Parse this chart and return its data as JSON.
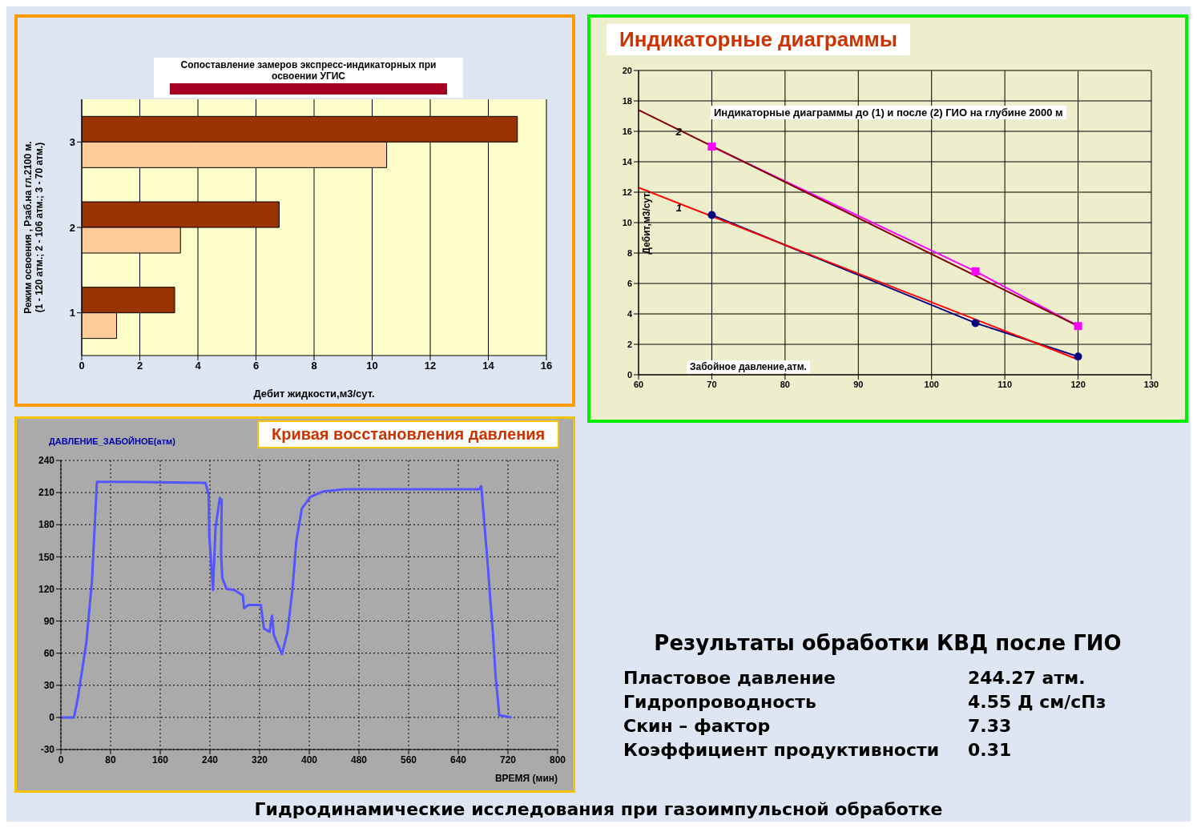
{
  "chart_data": [
    {
      "type": "bar",
      "orientation": "horizontal",
      "title": "Сопоставление замеров экспресс-индикаторных при освоении УГИС",
      "xlabel": "Дебит жидкости,м3/сут.",
      "ylabel": "Режим освоения , Рзаб.на гл.2100 м.\n(1 - 120 атм.; 2 - 106 атм.; 3 - 70 атм.)",
      "categories": [
        "3",
        "2",
        "1"
      ],
      "series": [
        {
          "color": "#993300",
          "values": [
            15,
            6.8,
            3.2
          ]
        },
        {
          "color": "#ffcc99",
          "values": [
            10.5,
            3.4,
            1.2
          ]
        }
      ],
      "xlim": [
        0,
        16
      ],
      "xticks": [
        0,
        2,
        4,
        6,
        8,
        10,
        12,
        14,
        16
      ],
      "grid": "x"
    },
    {
      "type": "line",
      "title": "Индикаторные диаграммы",
      "subtitle": "Индикаторные диаграммы до (1) и после (2) ГИО на глубине 2000 м",
      "xlabel": "Забойное давление,атм.",
      "ylabel": "Дебит,м3/сут.",
      "series": [
        {
          "color": "#000080",
          "marker": "circle",
          "x": [
            70,
            106,
            120
          ],
          "values": [
            10.5,
            3.4,
            1.2
          ]
        },
        {
          "color": "#ff0000",
          "marker": "none",
          "x": [
            60,
            120
          ],
          "values": [
            12.3,
            1.0
          ]
        },
        {
          "color": "#ff00ff",
          "marker": "square",
          "x": [
            70,
            106,
            120
          ],
          "values": [
            15,
            6.8,
            3.2
          ]
        },
        {
          "color": "#800000",
          "marker": "none",
          "x": [
            60,
            120
          ],
          "values": [
            17.4,
            3.2
          ]
        }
      ],
      "annotations": [
        {
          "text": "2",
          "x": 65.5,
          "y": 16
        },
        {
          "text": "1",
          "x": 65.5,
          "y": 11
        }
      ],
      "xlim": [
        60,
        130
      ],
      "xticks": [
        60,
        70,
        80,
        90,
        100,
        110,
        120,
        130
      ],
      "ylim": [
        0,
        20
      ],
      "yticks": [
        0,
        2,
        4,
        6,
        8,
        10,
        12,
        14,
        16,
        18,
        20
      ],
      "grid": true,
      "line_style": "solid"
    },
    {
      "type": "line",
      "title": "Кривая восстановления давления",
      "xlabel": "ВРЕМЯ (мин)",
      "ylabel": "ДАВЛЕНИЕ_ЗАБОЙНОЕ(атм)",
      "series": [
        {
          "color": "#5555ff",
          "x": [
            0,
            21,
            27,
            41,
            50,
            57,
            58,
            107,
            233,
            238,
            239,
            245,
            249,
            256,
            259,
            258,
            260,
            267,
            279,
            293,
            295,
            302,
            322,
            327,
            336,
            340,
            343,
            356,
            365,
            373,
            379,
            388,
            402,
            422,
            456,
            674,
            677,
            680,
            688,
            691,
            696,
            700,
            706,
            726
          ],
          "values": [
            0,
            0,
            17,
            70,
            127,
            208,
            220,
            220,
            219,
            208,
            170,
            119,
            177,
            205,
            203,
            152,
            130,
            120,
            119,
            114,
            102,
            105,
            105,
            83,
            80,
            95,
            77,
            59,
            80,
            120,
            164,
            195,
            206,
            211,
            213,
            213,
            216,
            195,
            139,
            114,
            77,
            39,
            2,
            0
          ]
        }
      ],
      "xlim": [
        0,
        800
      ],
      "xticks": [
        0,
        80,
        160,
        240,
        320,
        400,
        480,
        560,
        640,
        720,
        800
      ],
      "ylim": [
        -30,
        240
      ],
      "yticks": [
        -30,
        0,
        30,
        60,
        90,
        120,
        150,
        180,
        210,
        240
      ],
      "grid": true,
      "marker": "none",
      "line_style": "solid"
    },
    {
      "type": "other",
      "title": "Результаты обработки КВД после ГИО",
      "annotations": [
        "Пластовое давление",
        "244.27 атм.",
        "Гидропроводность",
        "4.55 Д см/сПз",
        "Скин – фактор",
        "7.33",
        "Коэффициент продуктивности",
        "0.31"
      ]
    },
    {
      "type": "other",
      "title": "Гидродинамические исследования при газоимпульсной обработке"
    }
  ]
}
